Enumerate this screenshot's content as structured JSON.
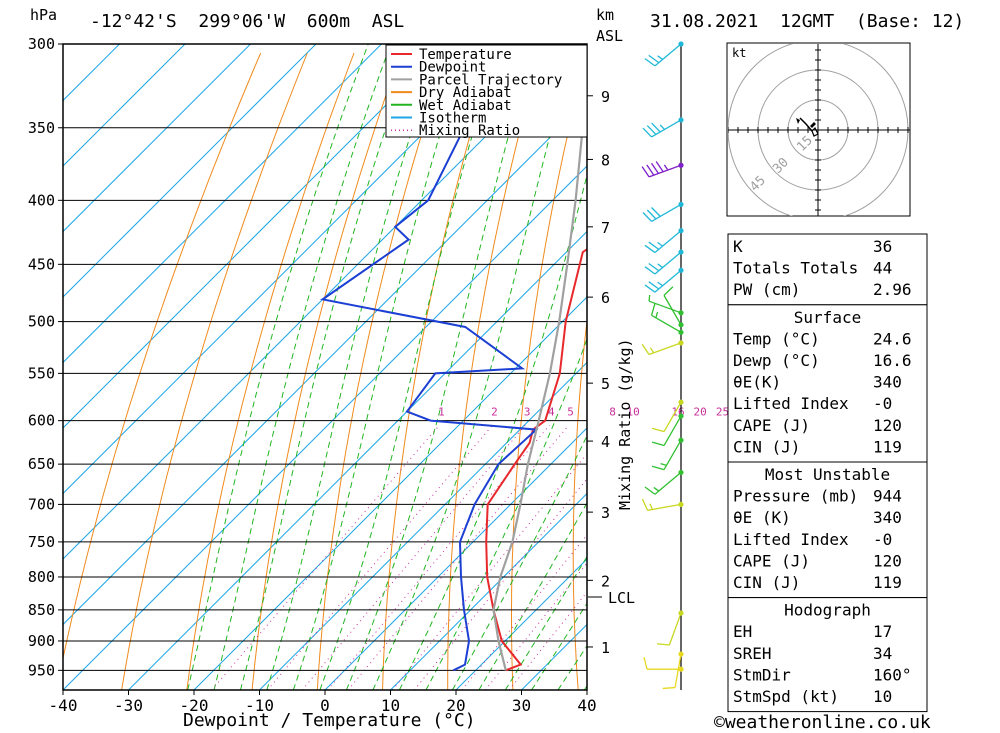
{
  "header": {
    "pressure_unit": "hPa",
    "location": "-12°42'S  299°06'W  600m  ASL",
    "km_label": "km",
    "asl_label": "ASL",
    "datetime": "31.08.2021  12GMT  (Base: 12)"
  },
  "footer": {
    "xlabel": "Dewpoint / Temperature (°C)",
    "copyright": "©weatheronline.co.uk"
  },
  "mixing_ratio_label": "Mixing Ratio (g/kg)",
  "lcl_label": "LCL",
  "legend": [
    {
      "label": "Temperature",
      "color": "#e8292b",
      "style": "solid"
    },
    {
      "label": "Dewpoint",
      "color": "#1c3fd4",
      "style": "solid"
    },
    {
      "label": "Parcel Trajectory",
      "color": "#a0a0a0",
      "style": "solid"
    },
    {
      "label": "Dry Adiabat",
      "color": "#f08a1c",
      "style": "solid"
    },
    {
      "label": "Wet Adiabat",
      "color": "#21b521",
      "style": "solid"
    },
    {
      "label": "Isotherm",
      "color": "#1ea6e8",
      "style": "solid"
    },
    {
      "label": "Mixing Ratio",
      "color": "#c8309a",
      "style": "dotted"
    }
  ],
  "hodograph": {
    "unit_label": "kt",
    "ring_labels": [
      "15",
      "30",
      "45"
    ]
  },
  "indices": {
    "top": [
      {
        "label": "K",
        "value": "36"
      },
      {
        "label": "Totals Totals",
        "value": "44"
      },
      {
        "label": "PW (cm)",
        "value": "2.96"
      }
    ],
    "surface": {
      "title": "Surface",
      "rows": [
        {
          "label": "Temp (°C)",
          "value": "24.6"
        },
        {
          "label": "Dewp (°C)",
          "value": "16.6"
        },
        {
          "label": "θE(K)",
          "value": "340"
        },
        {
          "label": "Lifted Index",
          "value": "-0"
        },
        {
          "label": "CAPE (J)",
          "value": "120"
        },
        {
          "label": "CIN (J)",
          "value": "119"
        }
      ]
    },
    "most_unstable": {
      "title": "Most Unstable",
      "rows": [
        {
          "label": "Pressure (mb)",
          "value": "944"
        },
        {
          "label": "θE (K)",
          "value": "340"
        },
        {
          "label": "Lifted Index",
          "value": "-0"
        },
        {
          "label": "CAPE (J)",
          "value": "120"
        },
        {
          "label": "CIN (J)",
          "value": "119"
        }
      ]
    },
    "hodograph_box": {
      "title": "Hodograph",
      "rows": [
        {
          "label": "EH",
          "value": "17"
        },
        {
          "label": "SREH",
          "value": "34"
        },
        {
          "label": "StmDir",
          "value": "160°"
        },
        {
          "label": "StmSpd (kt)",
          "value": "10"
        }
      ]
    }
  },
  "chart_data": {
    "type": "line",
    "title": "-12°42'S  299°06'W  600m  ASL",
    "xlabel": "Dewpoint / Temperature (°C)",
    "ylabel": "hPa",
    "xlim": [
      -40,
      40
    ],
    "ylim": [
      985,
      300
    ],
    "yscale": "log",
    "x_ticks": [
      -40,
      -30,
      -20,
      -10,
      0,
      10,
      20,
      30,
      40
    ],
    "pressure_ticks": [
      300,
      350,
      400,
      450,
      500,
      550,
      600,
      650,
      700,
      750,
      800,
      850,
      900,
      950
    ],
    "km_ticks": [
      {
        "label": "1",
        "p": 910
      },
      {
        "label": "2",
        "p": 805
      },
      {
        "label": "3",
        "p": 710
      },
      {
        "label": "4",
        "p": 623
      },
      {
        "label": "5",
        "p": 560
      },
      {
        "label": "6",
        "p": 478
      },
      {
        "label": "7",
        "p": 420
      },
      {
        "label": "8",
        "p": 371
      },
      {
        "label": "9",
        "p": 330
      }
    ],
    "lcl_pressure": 840,
    "mixing_ratio_values": [
      "1",
      "2",
      "3",
      "4",
      "5",
      "8",
      "10",
      "16",
      "20",
      "25"
    ],
    "series": [
      {
        "name": "Temperature",
        "color": "#e8292b",
        "points": [
          [
            950,
            24.6
          ],
          [
            940,
            26.0
          ],
          [
            900,
            19.5
          ],
          [
            850,
            13.5
          ],
          [
            800,
            7.5
          ],
          [
            750,
            2.0
          ],
          [
            700,
            -3.5
          ],
          [
            650,
            -5.5
          ],
          [
            625,
            -6.5
          ],
          [
            610,
            -8.0
          ],
          [
            600,
            -7.5
          ],
          [
            550,
            -12.5
          ],
          [
            500,
            -19.5
          ],
          [
            440,
            -27.5
          ],
          [
            430,
            -26.5
          ],
          [
            400,
            -31.0
          ],
          [
            370,
            -36.0
          ],
          [
            300,
            -48.0
          ]
        ]
      },
      {
        "name": "Dewpoint",
        "color": "#1c3fd4",
        "points": [
          [
            950,
            16.6
          ],
          [
            940,
            17.5
          ],
          [
            900,
            14.5
          ],
          [
            850,
            9.0
          ],
          [
            800,
            3.5
          ],
          [
            750,
            -2.0
          ],
          [
            700,
            -5.5
          ],
          [
            650,
            -8.0
          ],
          [
            610,
            -7.5
          ],
          [
            600,
            -25.0
          ],
          [
            590,
            -30.0
          ],
          [
            550,
            -31.5
          ],
          [
            545,
            -19.0
          ],
          [
            505,
            -34.0
          ],
          [
            480,
            -60.0
          ],
          [
            430,
            -56.0
          ],
          [
            420,
            -60.0
          ],
          [
            400,
            -59.0
          ],
          [
            300,
            -71.0
          ]
        ]
      },
      {
        "name": "Parcel Trajectory",
        "color": "#a0a0a0",
        "points": [
          [
            950,
            24.6
          ],
          [
            900,
            19.0
          ],
          [
            850,
            13.5
          ],
          [
            800,
            9.5
          ],
          [
            750,
            6.0
          ],
          [
            700,
            1.5
          ],
          [
            650,
            -3.5
          ],
          [
            600,
            -8.5
          ],
          [
            550,
            -14.0
          ],
          [
            500,
            -20.5
          ],
          [
            450,
            -28.0
          ],
          [
            400,
            -36.5
          ],
          [
            350,
            -46.5
          ],
          [
            310,
            -55.0
          ]
        ]
      }
    ],
    "wind_barbs": [
      {
        "p": 300,
        "dir": 230,
        "spd": 25,
        "color": "#20b8d8"
      },
      {
        "p": 345,
        "dir": 240,
        "spd": 35,
        "color": "#20b8d8"
      },
      {
        "p": 375,
        "dir": 250,
        "spd": 45,
        "color": "#8020c8"
      },
      {
        "p": 403,
        "dir": 240,
        "spd": 30,
        "color": "#20b8d8"
      },
      {
        "p": 423,
        "dir": 230,
        "spd": 25,
        "color": "#20b8d8"
      },
      {
        "p": 440,
        "dir": 230,
        "spd": 25,
        "color": "#20b8d8"
      },
      {
        "p": 455,
        "dir": 230,
        "spd": 25,
        "color": "#20b8d8"
      },
      {
        "p": 492,
        "dir": 290,
        "spd": 5,
        "color": "#30c030"
      },
      {
        "p": 503,
        "dir": 330,
        "spd": 10,
        "color": "#30c030"
      },
      {
        "p": 510,
        "dir": 300,
        "spd": 15,
        "color": "#30c030"
      },
      {
        "p": 520,
        "dir": 250,
        "spd": 15,
        "color": "#c8d820"
      },
      {
        "p": 580,
        "dir": 210,
        "spd": 10,
        "color": "#c8d820"
      },
      {
        "p": 595,
        "dir": 210,
        "spd": 10,
        "color": "#30c030"
      },
      {
        "p": 622,
        "dir": 210,
        "spd": 15,
        "color": "#30c030"
      },
      {
        "p": 660,
        "dir": 230,
        "spd": 15,
        "color": "#30c030"
      },
      {
        "p": 700,
        "dir": 260,
        "spd": 15,
        "color": "#c8d820"
      },
      {
        "p": 855,
        "dir": 200,
        "spd": 10,
        "color": "#c8d820"
      },
      {
        "p": 922,
        "dir": 190,
        "spd": 10,
        "color": "#e8d820"
      },
      {
        "p": 948,
        "dir": 270,
        "spd": 10,
        "color": "#e8d820"
      }
    ]
  }
}
